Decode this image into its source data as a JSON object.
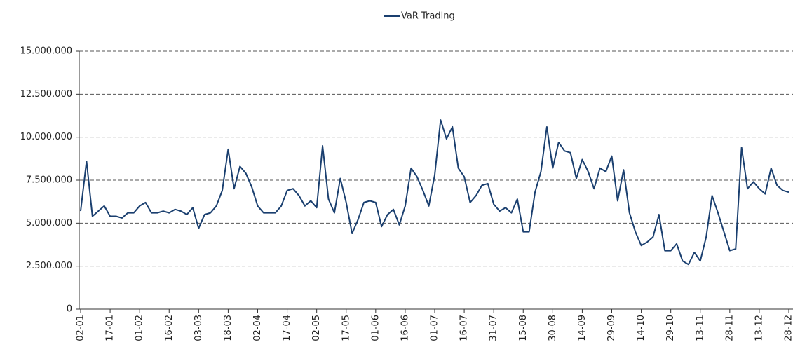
{
  "chart_data": {
    "type": "line",
    "categories": [
      "02-01",
      null,
      null,
      null,
      null,
      "17-01",
      null,
      null,
      null,
      null,
      "01-02",
      null,
      null,
      null,
      null,
      "16-02",
      null,
      null,
      null,
      null,
      "03-03",
      null,
      null,
      null,
      null,
      "18-03",
      null,
      null,
      null,
      null,
      "02-04",
      null,
      null,
      null,
      null,
      "17-04",
      null,
      null,
      null,
      null,
      "02-05",
      null,
      null,
      null,
      null,
      "17-05",
      null,
      null,
      null,
      null,
      "01-06",
      null,
      null,
      null,
      null,
      "16-06",
      null,
      null,
      null,
      null,
      "01-07",
      null,
      null,
      null,
      null,
      "16-07",
      null,
      null,
      null,
      null,
      "31-07",
      null,
      null,
      null,
      null,
      "15-08",
      null,
      null,
      null,
      null,
      "30-08",
      null,
      null,
      null,
      null,
      "14-09",
      null,
      null,
      null,
      null,
      "29-09",
      null,
      null,
      null,
      null,
      "14-10",
      null,
      null,
      null,
      null,
      "29-10",
      null,
      null,
      null,
      null,
      "13-11",
      null,
      null,
      null,
      null,
      "28-11",
      null,
      null,
      null,
      null,
      "13-12",
      null,
      null,
      null,
      null,
      "28-12"
    ],
    "series": [
      {
        "name": "VaR Trading",
        "color": "#1a3f6f",
        "values": [
          5700000,
          8600000,
          5400000,
          5700000,
          6000000,
          5400000,
          5400000,
          5300000,
          5600000,
          5600000,
          6000000,
          6200000,
          5600000,
          5600000,
          5700000,
          5600000,
          5800000,
          5700000,
          5500000,
          5900000,
          4700000,
          5500000,
          5600000,
          6000000,
          6900000,
          9300000,
          7000000,
          8300000,
          7900000,
          7100000,
          6000000,
          5600000,
          5600000,
          5600000,
          6000000,
          6900000,
          7000000,
          6600000,
          6000000,
          6300000,
          5900000,
          9500000,
          6400000,
          5600000,
          7600000,
          6200000,
          4400000,
          5200000,
          6200000,
          6300000,
          6200000,
          4800000,
          5500000,
          5800000,
          4900000,
          6000000,
          8200000,
          7700000,
          6900000,
          6000000,
          7800000,
          11000000,
          9900000,
          10600000,
          8200000,
          7700000,
          6200000,
          6600000,
          7200000,
          7300000,
          6100000,
          5700000,
          5900000,
          5600000,
          6400000,
          4500000,
          4500000,
          6800000,
          8000000,
          10600000,
          8200000,
          9700000,
          9200000,
          9100000,
          7600000,
          8700000,
          8000000,
          7000000,
          8200000,
          8000000,
          8900000,
          6300000,
          8100000,
          5600000,
          4500000,
          3700000,
          3900000,
          4200000,
          5500000,
          3400000,
          3400000,
          3800000,
          2800000,
          2600000,
          3300000,
          2800000,
          4200000,
          6600000,
          5600000,
          4500000,
          3400000,
          3500000,
          9400000,
          7000000,
          7400000,
          7000000,
          6700000,
          8200000,
          7200000,
          6900000,
          6800000
        ]
      }
    ],
    "ylim": [
      0,
      15000000
    ],
    "yticks": [
      0,
      {
        "value": 2500000,
        "label": "2.500.000"
      },
      {
        "value": 5000000,
        "label": "5.000.000"
      },
      {
        "value": 7500000,
        "label": "7.500.000"
      },
      {
        "value": 10000000,
        "label": "10.000.000"
      },
      {
        "value": 12500000,
        "label": "12.500.000"
      },
      {
        "value": 15000000,
        "label": "15.000.000"
      }
    ],
    "grid": true,
    "legend": "top"
  }
}
